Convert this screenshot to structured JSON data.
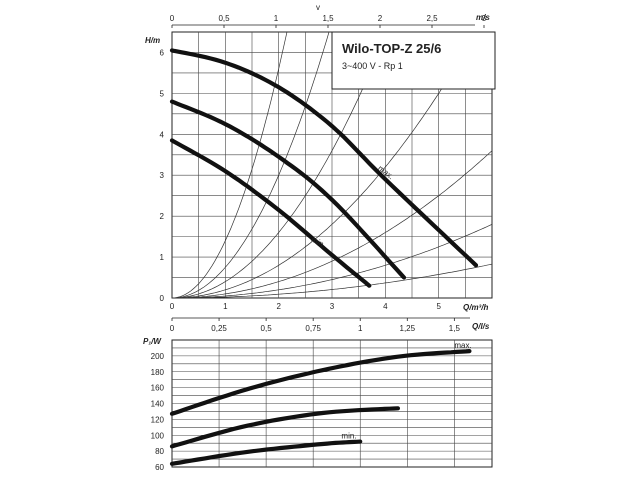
{
  "chart_data": [
    {
      "type": "line",
      "title": "Wilo-TOP-Z 25/6",
      "subtitle": "3~400 V - Rp 1",
      "ylabel": "H/m",
      "xlabel": "Q/m³/h",
      "top_axis_label": "m/s",
      "top_axis_symbol": "v",
      "xlim": [
        0,
        6
      ],
      "ylim": [
        0,
        6.5
      ],
      "x_ticks": [
        "0",
        "1",
        "2",
        "3",
        "4",
        "5"
      ],
      "y_ticks": [
        "0",
        "1",
        "2",
        "3",
        "4",
        "5",
        "6"
      ],
      "top_ticks": [
        "0",
        "0,5",
        "1",
        "1,5",
        "2",
        "2,5",
        "3"
      ],
      "top_tick_values": [
        0,
        0.5,
        1,
        1.5,
        2,
        2.5,
        3
      ],
      "velocity_scale_q_per_ms": 1.95,
      "series": [
        {
          "label": "max.",
          "x": [
            0,
            1,
            2,
            3,
            4,
            5.7
          ],
          "y": [
            6.05,
            5.75,
            5.15,
            4.2,
            2.9,
            0.8
          ]
        },
        {
          "label": "",
          "x": [
            0,
            1,
            2,
            3,
            4.35
          ],
          "y": [
            4.8,
            4.25,
            3.45,
            2.4,
            0.5
          ]
        },
        {
          "label": "min.",
          "x": [
            0,
            1,
            2,
            3,
            3.7
          ],
          "y": [
            3.85,
            3.1,
            2.15,
            1.05,
            0.3
          ]
        }
      ],
      "system_curve_k": [
        1.4,
        0.75,
        0.4,
        0.2,
        0.1,
        0.05,
        0.023
      ]
    },
    {
      "type": "line",
      "ylabel": "P₁/W",
      "xlabel": "Q/l/s",
      "xlim": [
        0,
        1.7
      ],
      "ylim": [
        60,
        220
      ],
      "x_ticks": [
        "0",
        "0,25",
        "0,5",
        "0,75",
        "1",
        "1,25",
        "1,5"
      ],
      "x_tick_values": [
        0,
        0.25,
        0.5,
        0.75,
        1,
        1.25,
        1.5
      ],
      "y_ticks": [
        "60",
        "80",
        "100",
        "120",
        "140",
        "160",
        "180",
        "200"
      ],
      "y_tick_values": [
        60,
        80,
        100,
        120,
        140,
        160,
        180,
        200
      ],
      "series": [
        {
          "label": "max.",
          "x": [
            0,
            0.4,
            0.8,
            1.2,
            1.58
          ],
          "y": [
            127,
            158,
            182,
            199,
            206
          ]
        },
        {
          "label": "",
          "x": [
            0,
            0.4,
            0.8,
            1.2
          ],
          "y": [
            86,
            112,
            128,
            134
          ]
        },
        {
          "label": "min.",
          "x": [
            0,
            0.4,
            0.8,
            1.0
          ],
          "y": [
            64,
            79,
            89,
            92
          ]
        }
      ]
    }
  ]
}
